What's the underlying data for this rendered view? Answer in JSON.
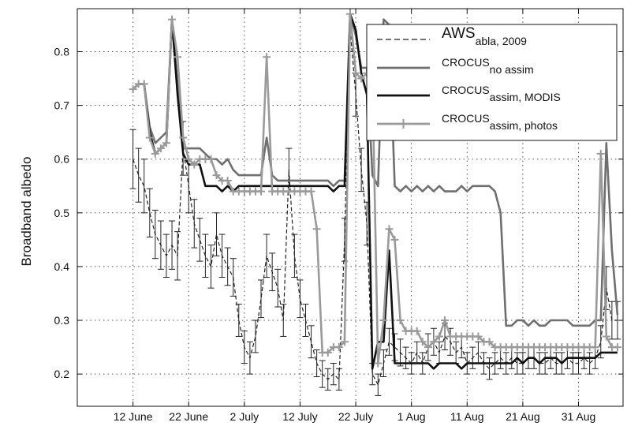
{
  "chart_data": {
    "type": "line",
    "title": "",
    "xlabel": "",
    "ylabel": "Broadband albedo",
    "ylim": [
      0.14,
      0.88
    ],
    "yticks": [
      0.2,
      0.3,
      0.4,
      0.5,
      0.6,
      0.7,
      0.8
    ],
    "ytick_labels": [
      "0.2",
      "0.3",
      "0.4",
      "0.5",
      "0.6",
      "0.7",
      "0.8"
    ],
    "x_range_days": [
      2,
      73
    ],
    "xticks": [
      {
        "day": 12,
        "label": "12 June"
      },
      {
        "day": 22,
        "label": "22 June"
      },
      {
        "day": 32,
        "label": "2 July"
      },
      {
        "day": 42,
        "label": "12 July"
      },
      {
        "day": 52,
        "label": "22 July"
      },
      {
        "day": 62,
        "label": "1 Aug"
      },
      {
        "day": 72,
        "label": "11 Aug"
      },
      {
        "day": 82,
        "label": "21 Aug"
      },
      {
        "day": 92,
        "label": "31 Aug"
      }
    ],
    "grid": "dotted",
    "legend_position": "top-right",
    "series": [
      {
        "name": "AWS",
        "name_sub": "abla, 2009",
        "style": "dashed",
        "color": "#222222",
        "x": [
          12,
          13,
          14,
          15,
          16,
          17,
          18,
          19,
          20,
          21,
          22,
          23,
          24,
          25,
          26,
          27,
          28,
          29,
          30,
          31,
          32,
          33,
          34,
          35,
          36,
          37,
          38,
          39,
          40,
          41,
          42,
          43,
          44,
          45,
          46,
          47,
          48,
          49,
          50,
          51,
          52,
          53,
          54,
          55,
          56,
          57,
          58,
          59,
          60,
          61,
          62,
          63,
          64,
          65,
          66,
          67,
          68,
          69,
          70,
          71,
          72,
          73,
          74,
          75,
          76,
          77,
          78,
          79,
          80,
          81,
          82,
          83,
          84,
          85,
          86,
          87,
          88,
          89,
          90,
          91,
          92,
          93,
          94,
          95,
          96,
          97,
          98,
          99
        ],
        "y": [
          0.6,
          0.57,
          0.55,
          0.5,
          0.46,
          0.44,
          0.42,
          0.44,
          0.42,
          0.62,
          0.55,
          0.48,
          0.45,
          0.42,
          0.4,
          0.46,
          0.42,
          0.4,
          0.38,
          0.3,
          0.25,
          0.23,
          0.27,
          0.34,
          0.42,
          0.39,
          0.36,
          0.3,
          0.58,
          0.42,
          0.34,
          0.3,
          0.26,
          0.22,
          0.2,
          0.19,
          0.2,
          0.19,
          0.45,
          0.84,
          0.72,
          0.58,
          0.48,
          0.2,
          0.18,
          0.22,
          0.26,
          0.25,
          0.24,
          0.23,
          0.22,
          0.24,
          0.22,
          0.25,
          0.26,
          0.24,
          0.27,
          0.26,
          0.24,
          0.25,
          0.22,
          0.23,
          0.24,
          0.22,
          0.21,
          0.22,
          0.23,
          0.22,
          0.23,
          0.22,
          0.22,
          0.23,
          0.23,
          0.22,
          0.22,
          0.23,
          0.22,
          0.22,
          0.23,
          0.22,
          0.22,
          0.23,
          0.22,
          0.23,
          0.26,
          0.36,
          0.3,
          0.3
        ],
        "err": [
          0.055,
          0.05,
          0.05,
          0.045,
          0.045,
          0.045,
          0.04,
          0.045,
          0.045,
          0.05,
          0.05,
          0.045,
          0.04,
          0.04,
          0.04,
          0.04,
          0.04,
          0.035,
          0.035,
          0.03,
          0.03,
          0.03,
          0.03,
          0.035,
          0.04,
          0.035,
          0.035,
          0.03,
          0.04,
          0.04,
          0.035,
          0.03,
          0.03,
          0.025,
          0.025,
          0.02,
          0.02,
          0.02,
          0.04,
          0.04,
          0.04,
          0.04,
          0.04,
          0.02,
          0.02,
          0.025,
          0.025,
          0.025,
          0.025,
          0.02,
          0.02,
          0.02,
          0.02,
          0.025,
          0.025,
          0.02,
          0.025,
          0.025,
          0.02,
          0.02,
          0.02,
          0.02,
          0.02,
          0.02,
          0.02,
          0.02,
          0.02,
          0.02,
          0.02,
          0.02,
          0.02,
          0.02,
          0.02,
          0.02,
          0.02,
          0.02,
          0.02,
          0.02,
          0.02,
          0.02,
          0.02,
          0.02,
          0.02,
          0.02,
          0.03,
          0.04,
          0.035,
          0.035
        ]
      },
      {
        "name": "CROCUS",
        "name_sub": "no assim",
        "style": "solid",
        "color": "#6f6f6f",
        "x": [
          12,
          13,
          14,
          15,
          16,
          17,
          18,
          19,
          20,
          21,
          22,
          23,
          24,
          25,
          26,
          27,
          28,
          29,
          30,
          31,
          32,
          33,
          34,
          35,
          36,
          37,
          38,
          39,
          40,
          41,
          42,
          43,
          44,
          45,
          46,
          47,
          48,
          49,
          50,
          51,
          52,
          53,
          54,
          55,
          56,
          57,
          58,
          59,
          60,
          61,
          62,
          63,
          64,
          65,
          66,
          67,
          68,
          69,
          70,
          71,
          72,
          73,
          74,
          75,
          76,
          77,
          78,
          79,
          80,
          81,
          82,
          83,
          84,
          85,
          86,
          87,
          88,
          89,
          90,
          91,
          92,
          93,
          94,
          95,
          96,
          97,
          98,
          99
        ],
        "y": [
          0.73,
          0.74,
          0.74,
          0.66,
          0.63,
          0.64,
          0.65,
          0.86,
          0.74,
          0.62,
          0.62,
          0.62,
          0.62,
          0.61,
          0.6,
          0.6,
          0.59,
          0.6,
          0.58,
          0.57,
          0.57,
          0.57,
          0.57,
          0.57,
          0.64,
          0.57,
          0.56,
          0.56,
          0.56,
          0.56,
          0.56,
          0.56,
          0.56,
          0.56,
          0.56,
          0.56,
          0.55,
          0.56,
          0.56,
          0.87,
          0.83,
          0.77,
          0.77,
          0.57,
          0.55,
          0.86,
          0.85,
          0.55,
          0.54,
          0.55,
          0.54,
          0.55,
          0.54,
          0.55,
          0.54,
          0.55,
          0.54,
          0.54,
          0.54,
          0.55,
          0.54,
          0.55,
          0.55,
          0.55,
          0.55,
          0.54,
          0.5,
          0.29,
          0.29,
          0.3,
          0.3,
          0.29,
          0.3,
          0.29,
          0.29,
          0.3,
          0.3,
          0.3,
          0.3,
          0.29,
          0.29,
          0.29,
          0.29,
          0.3,
          0.3,
          0.63,
          0.43,
          0.31
        ]
      },
      {
        "name": "CROCUS",
        "name_sub": "assim, MODIS",
        "style": "solid",
        "color": "#111111",
        "x": [
          12,
          13,
          14,
          15,
          16,
          17,
          18,
          19,
          20,
          21,
          22,
          23,
          24,
          25,
          26,
          27,
          28,
          29,
          30,
          31,
          32,
          33,
          34,
          35,
          36,
          37,
          38,
          39,
          40,
          41,
          42,
          43,
          44,
          45,
          46,
          47,
          48,
          49,
          50,
          51,
          52,
          53,
          54,
          55,
          56,
          57,
          58,
          59,
          60,
          61,
          62,
          63,
          64,
          65,
          66,
          67,
          68,
          69,
          70,
          71,
          72,
          73,
          74,
          75,
          76,
          77,
          78,
          79,
          80,
          81,
          82,
          83,
          84,
          85,
          86,
          87,
          88,
          89,
          90,
          91,
          92,
          93,
          94,
          95,
          96,
          97,
          98,
          99
        ],
        "y": [
          0.73,
          0.74,
          0.74,
          0.65,
          0.61,
          0.62,
          0.63,
          0.86,
          0.72,
          0.61,
          0.59,
          0.59,
          0.59,
          0.55,
          0.55,
          0.55,
          0.54,
          0.55,
          0.54,
          0.55,
          0.55,
          0.55,
          0.55,
          0.55,
          0.55,
          0.55,
          0.55,
          0.55,
          0.55,
          0.55,
          0.55,
          0.55,
          0.55,
          0.55,
          0.55,
          0.55,
          0.54,
          0.55,
          0.55,
          0.87,
          0.84,
          0.76,
          0.72,
          0.21,
          0.26,
          0.26,
          0.43,
          0.22,
          0.22,
          0.22,
          0.22,
          0.22,
          0.22,
          0.22,
          0.21,
          0.22,
          0.22,
          0.22,
          0.22,
          0.21,
          0.22,
          0.22,
          0.22,
          0.22,
          0.22,
          0.22,
          0.22,
          0.22,
          0.22,
          0.23,
          0.22,
          0.23,
          0.23,
          0.22,
          0.23,
          0.23,
          0.23,
          0.22,
          0.23,
          0.23,
          0.23,
          0.23,
          0.23,
          0.23,
          0.24,
          0.24,
          0.24,
          0.24
        ]
      },
      {
        "name": "CROCUS",
        "name_sub": "assim, photos",
        "style": "solid-plus",
        "color": "#9a9a9a",
        "x": [
          12,
          13,
          14,
          15,
          16,
          17,
          18,
          19,
          20,
          21,
          22,
          23,
          24,
          25,
          26,
          27,
          28,
          29,
          30,
          31,
          32,
          33,
          34,
          35,
          36,
          37,
          38,
          39,
          40,
          41,
          42,
          43,
          44,
          45,
          46,
          47,
          48,
          49,
          50,
          51,
          52,
          53,
          54,
          55,
          56,
          57,
          58,
          59,
          60,
          61,
          62,
          63,
          64,
          65,
          66,
          67,
          68,
          69,
          70,
          71,
          72,
          73,
          74,
          75,
          76,
          77,
          78,
          79,
          80,
          81,
          82,
          83,
          84,
          85,
          86,
          87,
          88,
          89,
          90,
          91,
          92,
          93,
          94,
          95,
          96,
          97,
          98,
          99
        ],
        "y": [
          0.73,
          0.74,
          0.74,
          0.64,
          0.61,
          0.62,
          0.63,
          0.86,
          0.79,
          0.64,
          0.6,
          0.59,
          0.6,
          0.6,
          0.6,
          0.57,
          0.56,
          0.56,
          0.54,
          0.54,
          0.54,
          0.54,
          0.54,
          0.54,
          0.79,
          0.54,
          0.54,
          0.54,
          0.54,
          0.54,
          0.54,
          0.54,
          0.54,
          0.47,
          0.24,
          0.24,
          0.25,
          0.25,
          0.26,
          0.87,
          0.76,
          0.75,
          0.76,
          0.75,
          0.22,
          0.3,
          0.47,
          0.45,
          0.3,
          0.28,
          0.28,
          0.28,
          0.26,
          0.25,
          0.26,
          0.27,
          0.3,
          0.27,
          0.27,
          0.27,
          0.27,
          0.27,
          0.27,
          0.26,
          0.26,
          0.25,
          0.25,
          0.25,
          0.25,
          0.25,
          0.25,
          0.25,
          0.25,
          0.25,
          0.25,
          0.25,
          0.25,
          0.25,
          0.25,
          0.25,
          0.25,
          0.25,
          0.25,
          0.25,
          0.61,
          0.27,
          0.25,
          0.25
        ]
      }
    ]
  }
}
